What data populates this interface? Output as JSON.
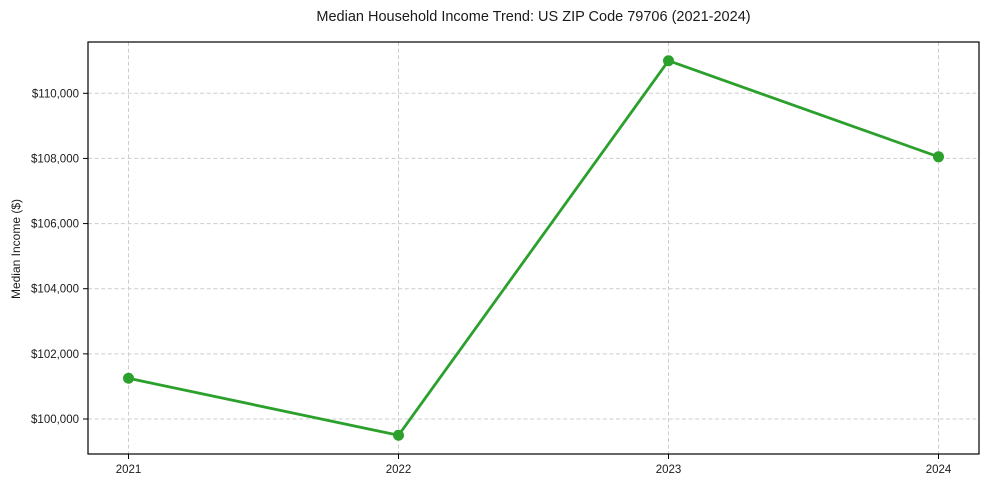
{
  "chart_data": {
    "type": "line",
    "title": "Median Household Income Trend: US ZIP Code 79706 (2021-2024)",
    "ylabel": "Median Income ($)",
    "xlabel": "",
    "categories": [
      "2021",
      "2022",
      "2023",
      "2024"
    ],
    "series": [
      {
        "values": [
          101250,
          99500,
          111000,
          108050
        ],
        "color": "#2ca02c",
        "marker": "circle"
      }
    ],
    "ylim": [
      98925,
      111575
    ],
    "yticks": [
      {
        "value": 100000,
        "label": "$100,000"
      },
      {
        "value": 102000,
        "label": "$102,000"
      },
      {
        "value": 104000,
        "label": "$104,000"
      },
      {
        "value": 106000,
        "label": "$106,000"
      },
      {
        "value": 108000,
        "label": "$108,000"
      },
      {
        "value": 110000,
        "label": "$110,000"
      }
    ],
    "grid": true,
    "grid_style": "dashed",
    "grid_color": "#cdcdcd",
    "axis_color": "#000000",
    "text_color": "#1a1a1a",
    "background_color": "#ffffff",
    "legend_position": "none",
    "x_axis_margin_fraction": 0.05
  }
}
